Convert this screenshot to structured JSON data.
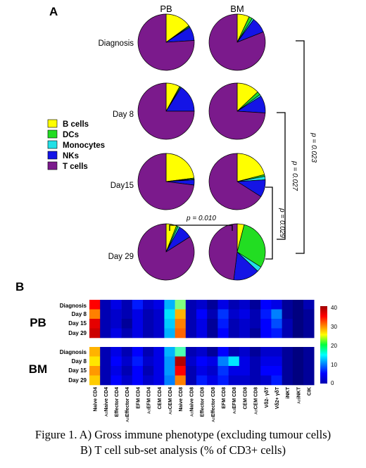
{
  "panel_a": {
    "label": "A",
    "columns": [
      "PB",
      "BM"
    ],
    "rows": [
      "Diagnosis",
      "Day 8",
      "Day15",
      "Day 29"
    ],
    "legend": [
      "B cells",
      "DCs",
      "Monocytes",
      "NKs",
      "T cells"
    ],
    "pvalues": [
      "p = 0.010",
      "p = 0.029",
      "p = 0.027",
      "p = 0.023"
    ]
  },
  "panel_b": {
    "label": "B",
    "groups": [
      "PB",
      "BM"
    ],
    "row_labels": [
      "Diagnosis",
      "Day 8",
      "Day 15",
      "Day 29"
    ],
    "colorbar_ticks": [
      "40",
      "30",
      "20",
      "10",
      "0"
    ]
  },
  "caption": {
    "line1": "Figure 1. A) Gross immune phenotype (excluding tumour cells)",
    "line2": "B) T cell sub-set analysis (% of CD3+ cells)"
  },
  "colors": {
    "B cells": "#ffff00",
    "DCs": "#22dd22",
    "Monocytes": "#22e0e6",
    "NKs": "#1414e6",
    "T cells": "#7b1a8c"
  },
  "chart_data": [
    {
      "type": "pie",
      "title": "Gross immune phenotype",
      "categories": [
        "B cells",
        "DCs",
        "Monocytes",
        "NKs",
        "T cells"
      ],
      "pies": [
        {
          "column": "PB",
          "row": "Diagnosis",
          "values": [
            15,
            0.5,
            0.5,
            8,
            76
          ]
        },
        {
          "column": "BM",
          "row": "Diagnosis",
          "values": [
            7,
            2,
            1,
            9,
            81
          ]
        },
        {
          "column": "PB",
          "row": "Day 8",
          "values": [
            8,
            0.5,
            0.5,
            16,
            75
          ]
        },
        {
          "column": "BM",
          "row": "Day 8",
          "values": [
            13,
            2,
            1,
            10,
            74
          ]
        },
        {
          "column": "PB",
          "row": "Day15",
          "values": [
            23,
            0.5,
            0.5,
            3,
            73
          ]
        },
        {
          "column": "BM",
          "row": "Day15",
          "values": [
            21,
            1,
            2,
            10,
            66
          ]
        },
        {
          "column": "PB",
          "row": "Day 29",
          "values": [
            6,
            1,
            1,
            8,
            84
          ]
        },
        {
          "column": "BM",
          "row": "Day 29",
          "values": [
            4,
            30,
            3,
            15,
            48
          ]
        }
      ]
    },
    {
      "type": "heatmap",
      "title": "T cell sub-set analysis",
      "columns": [
        "Naive CD4",
        "Naive CD4",
        "Effector CD4",
        "Effector CD4",
        "EFM CD4",
        "EFM CD4",
        "CEM CD4",
        "CEM CD4",
        "Naive CD8",
        "Naive CD8",
        "Effector CD8",
        "Effector CD8",
        "EFM CD8",
        "EFM CD8",
        "CEM CD8",
        "CEM CD8",
        "Vδ2- γδT",
        "Vδ2+ γδT",
        "iNKT",
        "iNKT",
        "CIK"
      ],
      "column_prefix": [
        "",
        "Act",
        "",
        "Act",
        "",
        "Act",
        "",
        "Act",
        "",
        "Act",
        "",
        "Act",
        "",
        "Act",
        "",
        "Act",
        "",
        "",
        "",
        "Act",
        ""
      ],
      "rows": [
        "Diagnosis",
        "Day 8",
        "Day 15",
        "Day 29"
      ],
      "vmin": 0,
      "vmax": 40,
      "PB": [
        [
          35,
          2,
          4,
          2,
          6,
          3,
          4,
          12,
          20,
          2,
          3,
          1,
          4,
          2,
          3,
          1,
          5,
          4,
          1,
          0,
          2
        ],
        [
          30,
          2,
          3,
          2,
          4,
          2,
          3,
          14,
          28,
          2,
          5,
          2,
          7,
          3,
          4,
          2,
          6,
          10,
          1,
          0,
          1
        ],
        [
          36,
          2,
          3,
          1,
          4,
          2,
          3,
          13,
          30,
          2,
          4,
          1,
          6,
          2,
          3,
          2,
          5,
          8,
          2,
          0,
          1
        ],
        [
          37,
          2,
          4,
          2,
          4,
          2,
          3,
          12,
          31,
          2,
          4,
          1,
          5,
          2,
          3,
          1,
          5,
          6,
          2,
          0,
          1
        ]
      ],
      "BM": [
        [
          28,
          2,
          4,
          2,
          5,
          2,
          4,
          12,
          18,
          2,
          3,
          1,
          5,
          2,
          3,
          1,
          3,
          3,
          1,
          0,
          1
        ],
        [
          26,
          2,
          5,
          3,
          6,
          3,
          4,
          11,
          38,
          3,
          5,
          4,
          10,
          14,
          4,
          2,
          4,
          4,
          1,
          0,
          1
        ],
        [
          29,
          2,
          4,
          2,
          5,
          2,
          4,
          11,
          35,
          2,
          4,
          3,
          7,
          4,
          4,
          2,
          5,
          5,
          1,
          0,
          1
        ],
        [
          27,
          2,
          5,
          3,
          5,
          3,
          4,
          10,
          30,
          2,
          6,
          4,
          6,
          3,
          3,
          2,
          3,
          6,
          1,
          0,
          1
        ]
      ]
    }
  ]
}
